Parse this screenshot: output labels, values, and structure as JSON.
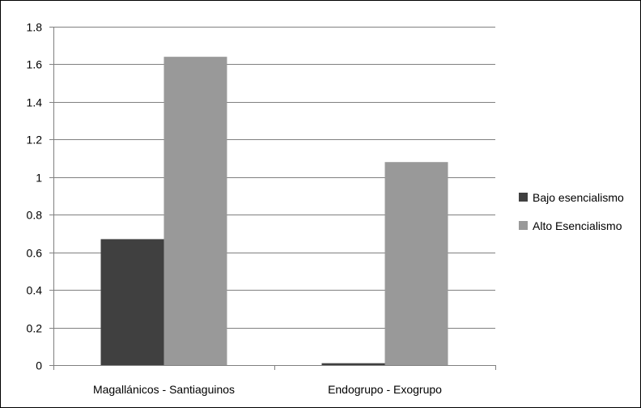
{
  "chart_data": {
    "type": "bar",
    "categories": [
      "Magallánicos - Santiaguinos",
      "Endogrupo - Exogrupo"
    ],
    "series": [
      {
        "name": "Bajo esencialismo",
        "values": [
          0.67,
          0.01
        ],
        "color": "#404040"
      },
      {
        "name": "Alto Esencialismo",
        "values": [
          1.64,
          1.08
        ],
        "color": "#999999"
      }
    ],
    "ylim": [
      0,
      1.8
    ],
    "yticks": [
      "0",
      "0.2",
      "0.4",
      "0.6",
      "0.8",
      "1",
      "1.2",
      "1.4",
      "1.6",
      "1.8"
    ],
    "grid": true,
    "legend_position": "right"
  }
}
